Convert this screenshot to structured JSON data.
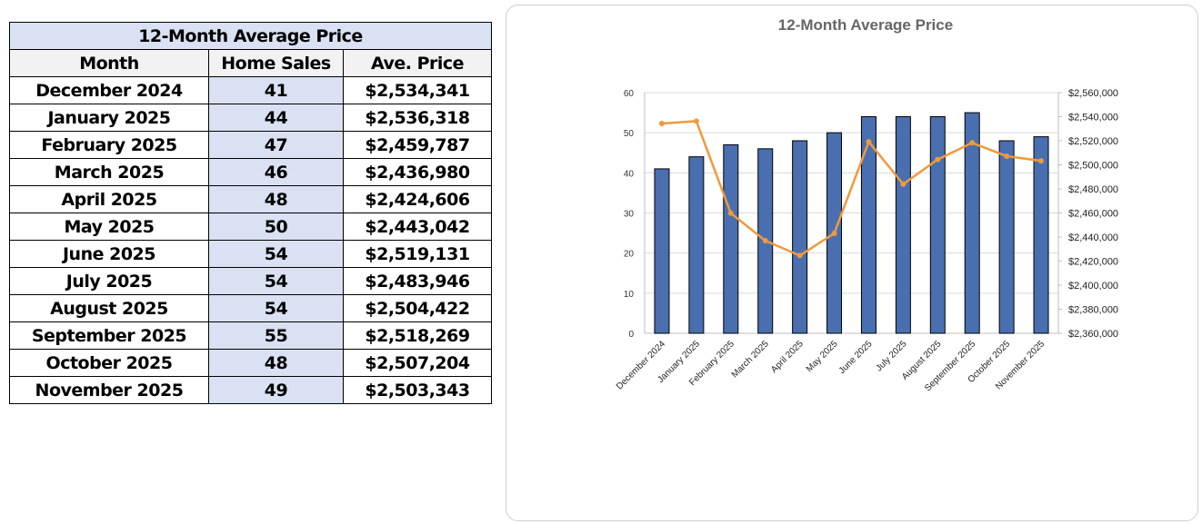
{
  "table": {
    "title": "12-Month Average Price",
    "headers": [
      "Month",
      "Home Sales",
      "Ave. Price"
    ],
    "rows": [
      [
        "December 2024",
        "41",
        "$2,534,341"
      ],
      [
        "January 2025",
        "44",
        "$2,536,318"
      ],
      [
        "February 2025",
        "47",
        "$2,459,787"
      ],
      [
        "March 2025",
        "46",
        "$2,436,980"
      ],
      [
        "April 2025",
        "48",
        "$2,424,606"
      ],
      [
        "May 2025",
        "50",
        "$2,443,042"
      ],
      [
        "June 2025",
        "54",
        "$2,519,131"
      ],
      [
        "July 2025",
        "54",
        "$2,483,946"
      ],
      [
        "August 2025",
        "54",
        "$2,504,422"
      ],
      [
        "September 2025",
        "55",
        "$2,518,269"
      ],
      [
        "October 2025",
        "48",
        "$2,507,204"
      ],
      [
        "November 2025",
        "49",
        "$2,503,343"
      ]
    ]
  },
  "chart_data": {
    "type": "bar",
    "title": "12-Month Average Price",
    "categories": [
      "December 2024",
      "January 2025",
      "February 2025",
      "March 2025",
      "April 2025",
      "May 2025",
      "June 2025",
      "July 2025",
      "August 2025",
      "September 2025",
      "October 2025",
      "November 2025"
    ],
    "series": [
      {
        "name": "Home Sales",
        "type": "bar",
        "axis": "left",
        "color": "#4a6fb0",
        "values": [
          41,
          44,
          47,
          46,
          48,
          50,
          54,
          54,
          54,
          55,
          48,
          49
        ]
      },
      {
        "name": "Ave. Price",
        "type": "line",
        "axis": "right",
        "color": "#ef9a3c",
        "values": [
          2534341,
          2536318,
          2459787,
          2436980,
          2424606,
          2443042,
          2519131,
          2483946,
          2504422,
          2518269,
          2507204,
          2503343
        ]
      }
    ],
    "ylim": [
      0,
      60
    ],
    "yticks": [
      "0",
      "10",
      "20",
      "30",
      "40",
      "50",
      "60"
    ],
    "y2lim": [
      2360000,
      2560000
    ],
    "y2ticks": [
      "$2,360,000",
      "$2,380,000",
      "$2,400,000",
      "$2,420,000",
      "$2,440,000",
      "$2,460,000",
      "$2,480,000",
      "$2,500,000",
      "$2,520,000",
      "$2,540,000",
      "$2,560,000"
    ],
    "grid": true,
    "legend": "none"
  }
}
